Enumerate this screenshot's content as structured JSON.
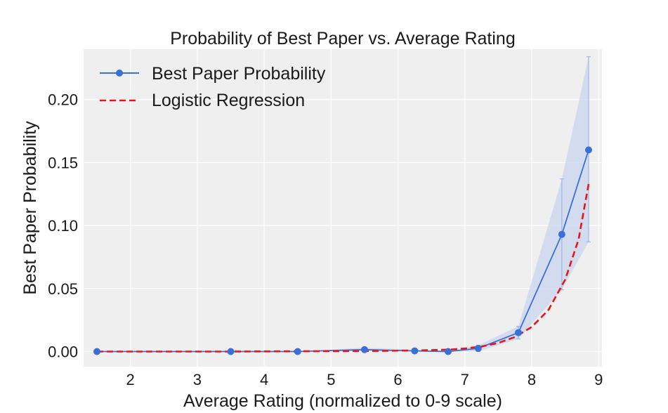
{
  "chart_data": {
    "type": "line",
    "title": "Probability of Best Paper vs. Average Rating",
    "xlabel": "Average Rating (normalized to 0-9 scale)",
    "ylabel": "Best Paper Probability",
    "xlim": [
      1.3,
      9.05
    ],
    "ylim": [
      -0.012,
      0.24
    ],
    "xticks": [
      2,
      3,
      4,
      5,
      6,
      7,
      8,
      9
    ],
    "yticks": [
      0.0,
      0.05,
      0.1,
      0.15,
      0.2
    ],
    "ytick_labels": [
      "0.00",
      "0.05",
      "0.10",
      "0.15",
      "0.20"
    ],
    "grid": true,
    "legend_position": "top-left",
    "series": [
      {
        "name": "Best Paper Probability",
        "style": "line-marker",
        "color": "#3a6fd8",
        "x": [
          1.5,
          3.5,
          4.5,
          5.5,
          6.25,
          6.75,
          7.2,
          7.8,
          8.45,
          8.85
        ],
        "y": [
          0.0,
          0.0,
          0.0,
          0.0015,
          0.0005,
          0.0,
          0.0025,
          0.015,
          0.093,
          0.16
        ],
        "ci_low": [
          0.0,
          0.0,
          0.0,
          0.0,
          0.0,
          0.0,
          0.0,
          0.01,
          0.049,
          0.087
        ],
        "ci_high": [
          0.0,
          0.0,
          0.0,
          0.003,
          0.0015,
          0.0,
          0.005,
          0.02,
          0.137,
          0.234
        ]
      },
      {
        "name": "Logistic Regression",
        "style": "dashed",
        "color": "#e8161b",
        "x": [
          1.5,
          2.5,
          3.5,
          4.5,
          5.5,
          6.25,
          6.75,
          7.0,
          7.25,
          7.5,
          7.75,
          8.0,
          8.25,
          8.5,
          8.7,
          8.85
        ],
        "y": [
          0.0,
          0.0,
          0.0,
          0.0002,
          0.0004,
          0.0008,
          0.0015,
          0.0024,
          0.004,
          0.0068,
          0.0115,
          0.0195,
          0.033,
          0.057,
          0.089,
          0.133
        ]
      }
    ]
  }
}
